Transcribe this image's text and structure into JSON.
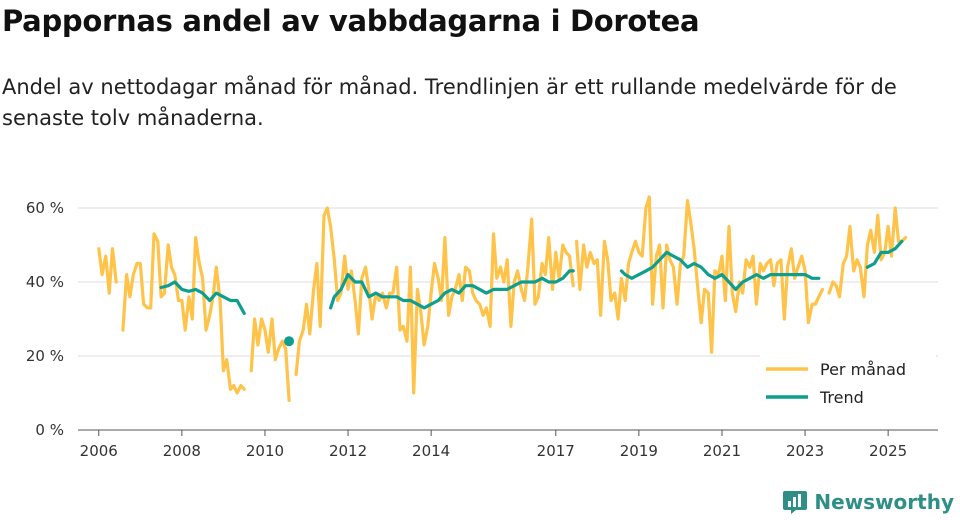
{
  "header": {
    "title": "Pappornas andel av vabbdagarna i Dorotea",
    "subtitle": "Andel av nettodagar månad för månad. Trendlinjen är ett rullande medelvärde för de senaste tolv månaderna."
  },
  "brand": {
    "name": "Newsworthy",
    "icon": "newsworthy-logo-icon",
    "color": "#2f8f86"
  },
  "colors": {
    "monthly": "#FFC34A",
    "trend": "#0E9E8E",
    "grid": "#dddddd"
  },
  "chart_data": {
    "type": "line",
    "x_unit": "year (decimal)",
    "xlim": [
      2005.5,
      2026.2
    ],
    "ylim": [
      0,
      60
    ],
    "y_ticks": [
      0,
      20,
      40,
      60
    ],
    "y_tick_labels": [
      "0 %",
      "20 %",
      "40 %",
      "60 %"
    ],
    "x_ticks": [
      2006,
      2008,
      2010,
      2012,
      2014,
      2017,
      2019,
      2021,
      2023,
      2025
    ],
    "x_tick_labels": [
      "2006",
      "2008",
      "2010",
      "2012",
      "2014",
      "2017",
      "2019",
      "2021",
      "2023",
      "2025"
    ],
    "legend": {
      "position": "bottom-right",
      "entries": [
        "Per månad",
        "Trend"
      ]
    },
    "series": [
      {
        "name": "Per månad",
        "segments": [
          {
            "x": [
              2006.0,
              2006.08,
              2006.17,
              2006.25,
              2006.33,
              2006.42
            ],
            "y": [
              49,
              42,
              47,
              37,
              49,
              40
            ]
          },
          {
            "x": [
              2006.58,
              2006.67,
              2006.75,
              2006.83,
              2006.92,
              2007.0,
              2007.08,
              2007.17,
              2007.25,
              2007.33,
              2007.42,
              2007.5,
              2007.58,
              2007.67,
              2007.75,
              2007.83,
              2007.92,
              2008.0,
              2008.08,
              2008.17,
              2008.25,
              2008.33,
              2008.42,
              2008.5,
              2008.58,
              2008.67,
              2008.75,
              2008.83,
              2008.92,
              2009.0,
              2009.08,
              2009.17,
              2009.25,
              2009.33,
              2009.42,
              2009.5
            ],
            "y": [
              27,
              42,
              36,
              42,
              45,
              45,
              34,
              33,
              33,
              53,
              51,
              36,
              37,
              50,
              44,
              42,
              35,
              35,
              27,
              36,
              30,
              52,
              45,
              41,
              27,
              31,
              36,
              44,
              35,
              16,
              19,
              11,
              12,
              10,
              12,
              11
            ]
          },
          {
            "x": [
              2009.67,
              2009.75,
              2009.83,
              2009.92,
              2010.0,
              2010.08,
              2010.17,
              2010.25,
              2010.33,
              2010.42,
              2010.5,
              2010.58
            ],
            "y": [
              16,
              30,
              23,
              30,
              27,
              21,
              30,
              19,
              22,
              24,
              22,
              8
            ]
          },
          {
            "x": [
              2010.75,
              2010.83,
              2010.92,
              2011.0,
              2011.08,
              2011.17,
              2011.25,
              2011.33,
              2011.42,
              2011.5,
              2011.58,
              2011.67,
              2011.75,
              2011.83,
              2011.92,
              2012.0,
              2012.08,
              2012.17,
              2012.25,
              2012.33,
              2012.42,
              2012.5,
              2012.58,
              2012.67,
              2012.75,
              2012.83,
              2012.92,
              2013.0,
              2013.08,
              2013.17,
              2013.25,
              2013.33,
              2013.42,
              2013.5,
              2013.58,
              2013.67,
              2013.75,
              2013.83,
              2013.92,
              2014.0,
              2014.08,
              2014.17,
              2014.25,
              2014.33,
              2014.42,
              2014.5,
              2014.58,
              2014.67,
              2014.75,
              2014.83,
              2014.92,
              2015.0,
              2015.08,
              2015.17,
              2015.25,
              2015.33,
              2015.42,
              2015.5,
              2015.58,
              2015.67,
              2015.75,
              2015.83,
              2015.92,
              2016.0,
              2016.08,
              2016.17,
              2016.25,
              2016.33,
              2016.42,
              2016.5,
              2016.58,
              2016.67,
              2016.75,
              2016.83,
              2016.92,
              2017.0,
              2017.08,
              2017.17,
              2017.25,
              2017.33,
              2017.42
            ],
            "y": [
              15,
              24,
              27,
              34,
              26,
              38,
              45,
              28,
              58,
              60,
              55,
              46,
              35,
              37,
              47,
              38,
              43,
              35,
              26,
              41,
              44,
              38,
              30,
              37,
              35,
              37,
              33,
              37,
              37,
              44,
              27,
              28,
              24,
              44,
              10,
              38,
              32,
              23,
              28,
              37,
              45,
              41,
              35,
              52,
              31,
              36,
              38,
              42,
              35,
              44,
              43,
              37,
              35,
              34,
              31,
              33,
              28,
              53,
              41,
              44,
              40,
              46,
              28,
              40,
              43,
              38,
              35,
              44,
              57,
              34,
              36,
              45,
              42,
              52,
              38,
              48,
              41,
              50,
              48,
              47,
              39
            ]
          },
          {
            "x": [
              2017.5,
              2017.58,
              2017.67,
              2017.75,
              2017.83,
              2017.92,
              2018.0,
              2018.08,
              2018.17,
              2018.25,
              2018.33,
              2018.42,
              2018.5,
              2018.58,
              2018.67,
              2018.75,
              2018.83,
              2018.92,
              2019.0,
              2019.08,
              2019.17,
              2019.25,
              2019.33,
              2019.42,
              2019.5,
              2019.58,
              2019.67,
              2019.75,
              2019.83,
              2019.92,
              2020.0,
              2020.08,
              2020.17,
              2020.25,
              2020.33,
              2020.42,
              2020.5,
              2020.58,
              2020.67,
              2020.75,
              2020.83,
              2020.92,
              2021.0,
              2021.08,
              2021.17,
              2021.25,
              2021.33,
              2021.42,
              2021.5,
              2021.58,
              2021.67,
              2021.75,
              2021.83,
              2021.92,
              2022.0,
              2022.08,
              2022.17,
              2022.25,
              2022.33,
              2022.42,
              2022.5,
              2022.58,
              2022.67,
              2022.75,
              2022.83,
              2022.92,
              2023.0,
              2023.08,
              2023.17,
              2023.25,
              2023.33,
              2023.42
            ],
            "y": [
              51,
              38,
              50,
              44,
              48,
              45,
              46,
              31,
              51,
              46,
              35,
              37,
              30,
              41,
              35,
              45,
              48,
              51,
              48,
              47,
              60,
              63,
              34,
              47,
              50,
              33,
              50,
              46,
              44,
              34,
              45,
              47,
              62,
              56,
              49,
              38,
              29,
              38,
              37,
              21,
              43,
              42,
              47,
              35,
              55,
              37,
              32,
              40,
              37,
              46,
              44,
              47,
              34,
              45,
              43,
              45,
              46,
              39,
              45,
              46,
              30,
              44,
              49,
              41,
              44,
              47,
              43,
              29,
              34,
              34,
              36,
              38
            ]
          },
          {
            "x": [
              2023.58,
              2023.67,
              2023.75,
              2023.83,
              2023.92,
              2024.0,
              2024.08,
              2024.17,
              2024.25,
              2024.33,
              2024.42,
              2024.5,
              2024.58,
              2024.67,
              2024.75,
              2024.83,
              2024.92,
              2025.0,
              2025.08,
              2025.17,
              2025.25,
              2025.33,
              2025.42
            ],
            "y": [
              37,
              40,
              39,
              36,
              45,
              47,
              55,
              43,
              46,
              44,
              36,
              50,
              54,
              48,
              58,
              46,
              48,
              55,
              47,
              60,
              51,
              51,
              52
            ]
          }
        ]
      },
      {
        "name": "Trend",
        "segments": [
          {
            "x": [
              2007.5,
              2007.67,
              2007.83,
              2008.0,
              2008.17,
              2008.33,
              2008.5,
              2008.67,
              2008.83,
              2009.0,
              2009.17,
              2009.33,
              2009.5
            ],
            "y": [
              38.5,
              39.0,
              40.0,
              38.0,
              37.5,
              38.0,
              37.0,
              35.0,
              37.0,
              36.0,
              35.0,
              35.0,
              31.5
            ]
          },
          {
            "x": [
              2011.58,
              2011.67,
              2011.83,
              2012.0,
              2012.17,
              2012.33,
              2012.5,
              2012.67,
              2012.83,
              2013.0,
              2013.17,
              2013.33,
              2013.5,
              2013.67,
              2013.83,
              2014.0,
              2014.17,
              2014.33,
              2014.5,
              2014.67,
              2014.83,
              2015.0,
              2015.17,
              2015.33,
              2015.5,
              2015.67,
              2015.83,
              2016.0,
              2016.17,
              2016.33,
              2016.5,
              2016.67,
              2016.83,
              2017.0,
              2017.17,
              2017.33,
              2017.42
            ],
            "y": [
              33.0,
              36.0,
              38.0,
              42.0,
              40.0,
              40.0,
              36.0,
              37.0,
              36.0,
              36.0,
              36.0,
              35.0,
              35.0,
              34.0,
              33.0,
              34.0,
              35.0,
              37.0,
              38.0,
              37.0,
              39.0,
              39.0,
              38.0,
              37.0,
              38.0,
              38.0,
              38.0,
              39.0,
              40.0,
              40.0,
              40.0,
              41.0,
              40.0,
              40.0,
              41.0,
              43.0,
              43.0
            ]
          },
          {
            "x": [
              2018.58,
              2018.67,
              2018.83,
              2019.0,
              2019.17,
              2019.33,
              2019.5,
              2019.67,
              2019.83,
              2020.0,
              2020.17,
              2020.33,
              2020.5,
              2020.67,
              2020.83,
              2021.0,
              2021.17,
              2021.33,
              2021.5,
              2021.67,
              2021.83,
              2022.0,
              2022.17,
              2022.33,
              2022.5,
              2022.67,
              2022.83,
              2023.0,
              2023.17,
              2023.33
            ],
            "y": [
              43.0,
              42.0,
              41.0,
              42.0,
              43.0,
              44.0,
              46.0,
              48.0,
              47.0,
              46.0,
              44.0,
              45.0,
              44.0,
              42.0,
              41.0,
              42.0,
              40.0,
              38.0,
              40.0,
              41.0,
              42.0,
              41.0,
              42.0,
              42.0,
              42.0,
              42.0,
              42.0,
              42.0,
              41.0,
              41.0
            ]
          },
          {
            "x": [
              2024.5,
              2024.67,
              2024.83,
              2025.0,
              2025.17,
              2025.33
            ],
            "y": [
              44.0,
              45.0,
              48.0,
              48.0,
              49.0,
              51.0
            ]
          }
        ],
        "points": [
          {
            "x": 2010.58,
            "y": 24
          }
        ]
      }
    ]
  }
}
